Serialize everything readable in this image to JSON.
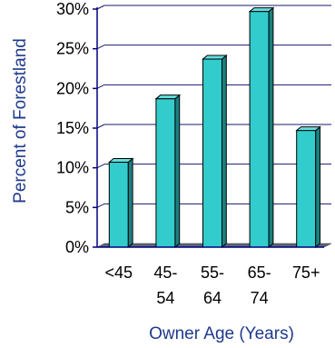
{
  "chart_data": {
    "type": "bar",
    "title": "",
    "xlabel": "Owner Age (Years)",
    "ylabel": "Percent of Forestland",
    "categories": [
      [
        "<45"
      ],
      [
        "45-",
        "54"
      ],
      [
        "55-",
        "64"
      ],
      [
        "65-",
        "74"
      ],
      [
        "75+"
      ]
    ],
    "values": [
      10.7,
      18.7,
      23.7,
      29.7,
      14.7
    ],
    "ylim": [
      0,
      30
    ],
    "yticks": [
      "0%",
      "5%",
      "10%",
      "15%",
      "20%",
      "25%",
      "30%"
    ],
    "grid": true,
    "legend": "none",
    "colors": {
      "bar_front": "#33CCCC",
      "bar_side": "#1A8080",
      "bar_top": "#66DDDD",
      "bar_outline": "#000000",
      "floor": "#5A6478",
      "grid": "#1A1A6E",
      "axis": "#000080",
      "axis_title": "#1F3A8C"
    }
  }
}
